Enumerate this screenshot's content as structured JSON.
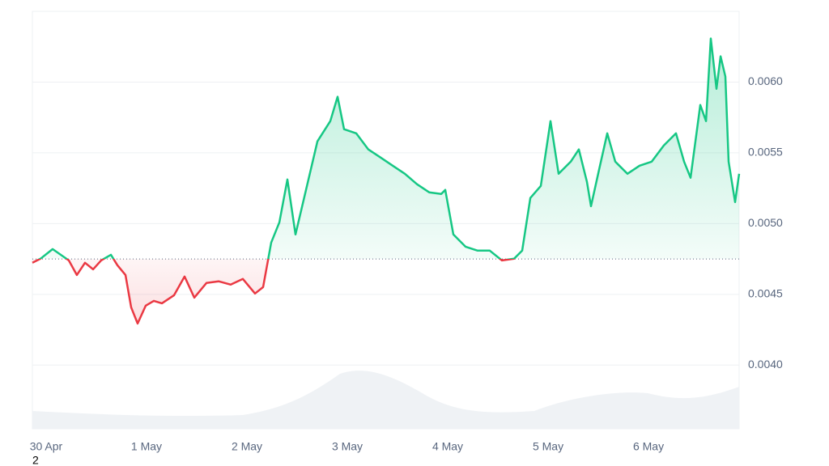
{
  "chart_data": {
    "type": "line",
    "footnote": "2",
    "x": [
      -0.137,
      -0.056,
      0.024,
      0.065,
      0.145,
      0.226,
      0.306,
      0.387,
      0.468,
      0.548,
      0.645,
      0.71,
      0.79,
      0.847,
      0.911,
      0.992,
      1.073,
      1.153,
      1.274,
      1.379,
      1.476,
      1.597,
      1.718,
      1.839,
      1.96,
      2.081,
      2.161,
      2.242,
      2.323,
      2.403,
      2.484,
      2.589,
      2.702,
      2.831,
      2.903,
      2.968,
      3.089,
      3.21,
      3.331,
      3.452,
      3.573,
      3.694,
      3.815,
      3.935,
      3.976,
      4.056,
      4.177,
      4.298,
      4.419,
      4.54,
      4.661,
      4.742,
      4.823,
      4.927,
      5.024,
      5.105,
      5.226,
      5.306,
      5.387,
      5.427,
      5.508,
      5.589,
      5.669,
      5.79,
      5.911,
      6.032,
      6.153,
      6.274,
      6.355,
      6.419,
      6.516,
      6.573,
      6.621,
      6.677,
      6.718,
      6.766,
      6.798,
      6.863,
      6.903
    ],
    "series": [
      {
        "values": [
          0.004723,
          0.004752,
          0.004797,
          0.00482,
          0.00478,
          0.00474,
          0.004637,
          0.004723,
          0.004677,
          0.00474,
          0.00478,
          0.004706,
          0.004637,
          0.004408,
          0.004294,
          0.00442,
          0.004454,
          0.004437,
          0.004494,
          0.004626,
          0.004477,
          0.00458,
          0.004592,
          0.004569,
          0.004609,
          0.004506,
          0.004551,
          0.004866,
          0.005009,
          0.005312,
          0.004923,
          0.005238,
          0.005581,
          0.005724,
          0.005896,
          0.005667,
          0.005638,
          0.005524,
          0.005467,
          0.005409,
          0.005352,
          0.005278,
          0.005221,
          0.005209,
          0.005238,
          0.004923,
          0.004837,
          0.004809,
          0.004809,
          0.00474,
          0.004752,
          0.004809,
          0.005181,
          0.005266,
          0.005724,
          0.005352,
          0.005438,
          0.005524,
          0.005295,
          0.005123,
          0.005381,
          0.005638,
          0.005438,
          0.005352,
          0.005409,
          0.005438,
          0.005552,
          0.005638,
          0.005438,
          0.005324,
          0.005838,
          0.005724,
          0.006308,
          0.005953,
          0.006182,
          0.006039,
          0.005438,
          0.005152,
          0.005352
        ]
      }
    ],
    "baseline": 0.00475,
    "color_above": "#16c784",
    "color_below": "#ea3943",
    "xlim": [
      -0.137,
      6.903
    ],
    "xticks": [
      {
        "value": 0,
        "label": "30 Apr"
      },
      {
        "value": 1,
        "label": "1 May"
      },
      {
        "value": 2,
        "label": "2 May"
      },
      {
        "value": 3,
        "label": "3 May"
      },
      {
        "value": 4,
        "label": "4 May"
      },
      {
        "value": 5,
        "label": "5 May"
      },
      {
        "value": 6,
        "label": "6 May"
      }
    ],
    "ylim": [
      0.00355,
      0.0065
    ],
    "yticks": [
      {
        "value": 0.004,
        "label": "0.0040"
      },
      {
        "value": 0.0045,
        "label": "0.0045"
      },
      {
        "value": 0.005,
        "label": "0.0050"
      },
      {
        "value": 0.0055,
        "label": "0.0055"
      },
      {
        "value": 0.006,
        "label": "0.0060"
      }
    ],
    "grid": true
  }
}
